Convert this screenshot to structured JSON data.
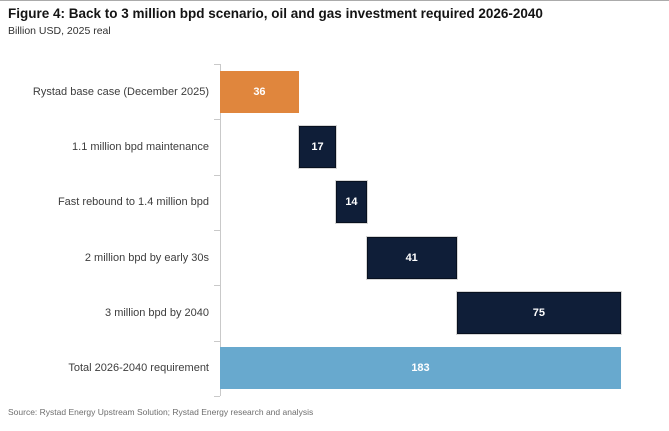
{
  "header": {
    "title": "Figure 4: Back to 3 million bpd scenario, oil and gas investment required 2026-2040",
    "subtitle": "Billion USD, 2025 real"
  },
  "source": "Source: Rystad Energy Upstream Solution; Rystad Energy research and analysis",
  "colors": {
    "orange": "#E0863D",
    "navy": "#0F1E38",
    "blue": "#68A9CE",
    "axis": "#C9C9C9",
    "value_label": "#FFFFFF"
  },
  "chart_data": {
    "type": "bar",
    "subtype": "horizontal-waterfall",
    "title": "Figure 4: Back to 3 million bpd scenario, oil and gas investment required 2026-2040",
    "units": "Billion USD, 2025 real",
    "xlim": [
      0,
      183
    ],
    "grid": false,
    "legend": "none",
    "categories": [
      "Rystad base case (December 2025)",
      "1.1 million bpd maintenance",
      "Fast rebound to 1.4 million bpd",
      "2 million bpd by early 30s",
      "3 million bpd by 2040",
      "Total 2026-2040 requirement"
    ],
    "values": [
      36,
      17,
      14,
      41,
      75,
      183
    ],
    "bars": [
      {
        "id": "rystad-base-case",
        "label": "Rystad base case (December 2025)",
        "value": 36,
        "start": 0,
        "color": "orange"
      },
      {
        "id": "maintenance",
        "label": "1.1 million bpd maintenance",
        "value": 17,
        "start": 36,
        "color": "navy"
      },
      {
        "id": "fast-rebound",
        "label": "Fast rebound to 1.4 million bpd",
        "value": 14,
        "start": 53,
        "color": "navy"
      },
      {
        "id": "two-million-early-30s",
        "label": "2 million bpd by early 30s",
        "value": 41,
        "start": 67,
        "color": "navy"
      },
      {
        "id": "three-million-2040",
        "label": "3 million bpd by 2040",
        "value": 75,
        "start": 108,
        "color": "navy"
      },
      {
        "id": "total-requirement",
        "label": "Total 2026-2040 requirement",
        "value": 183,
        "start": 0,
        "color": "blue"
      }
    ]
  }
}
